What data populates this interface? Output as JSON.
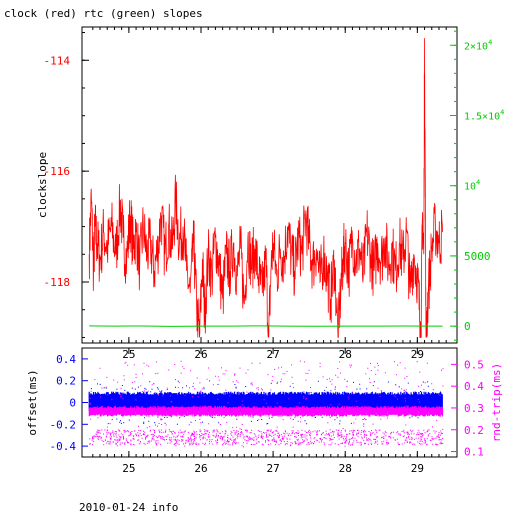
{
  "title": "clock (red) rtc (green) slopes",
  "footer": "2010-01-24 info",
  "colors": {
    "clock": "#ff0000",
    "rtc": "#00cc00",
    "offset": "#0000ff",
    "roundtrip": "#ff00ff",
    "axis": "#000000"
  },
  "chart_data": [
    {
      "type": "line",
      "title": "clock (red) rtc (green) slopes",
      "ylabel": "clockslope",
      "xlim": [
        24.35,
        29.55
      ],
      "ylim": [
        -119.1,
        -113.4
      ],
      "y2lim": [
        -1200,
        21300
      ],
      "x_ticks": [
        25,
        26,
        27,
        28,
        29
      ],
      "x_tick_labels": [
        "25",
        "26",
        "27",
        "28",
        "29"
      ],
      "y_ticks": [
        -114,
        -116,
        -118
      ],
      "y_tick_labels": [
        "-114",
        "-116",
        "-118"
      ],
      "y2_ticks": [
        0,
        5000,
        10000,
        15000,
        20000
      ],
      "y2_tick_labels_plain": [
        "0",
        "5000"
      ],
      "y2_tick_labels_sci": [
        {
          "mantissa": "10",
          "exponent": "4"
        },
        {
          "mantissa": "1.5×10",
          "exponent": "4"
        },
        {
          "mantissa": "2×10",
          "exponent": "4"
        }
      ],
      "series": [
        {
          "name": "clock",
          "axis": "left",
          "x": [
            24.45,
            24.48,
            24.51,
            24.53,
            24.56,
            24.6,
            24.65,
            24.7,
            24.76,
            24.82,
            24.88,
            24.92,
            24.97,
            25.02,
            25.06,
            25.1,
            25.15,
            25.2,
            25.25,
            25.3,
            25.35,
            25.4,
            25.45,
            25.5,
            25.55,
            25.6,
            25.65,
            25.7,
            25.75,
            25.8,
            25.85,
            25.9,
            25.94,
            25.98,
            26.02,
            26.05,
            26.1,
            26.15,
            26.2,
            26.25,
            26.3,
            26.35,
            26.4,
            26.45,
            26.5,
            26.55,
            26.6,
            26.65,
            26.7,
            26.75,
            26.8,
            26.85,
            26.9,
            26.94,
            26.97,
            27.0,
            27.05,
            27.1,
            27.15,
            27.2,
            27.25,
            27.3,
            27.35,
            27.4,
            27.45,
            27.5,
            27.55,
            27.6,
            27.65,
            27.7,
            27.75,
            27.8,
            27.85,
            27.9,
            27.94,
            27.97,
            28.0,
            28.05,
            28.1,
            28.15,
            28.2,
            28.25,
            28.3,
            28.35,
            28.4,
            28.45,
            28.5,
            28.55,
            28.6,
            28.65,
            28.7,
            28.75,
            28.8,
            28.85,
            28.9,
            28.95,
            29.0,
            29.03,
            29.05,
            29.07,
            29.09,
            29.1,
            29.12,
            29.15,
            29.2,
            29.25,
            29.3,
            29.35
          ],
          "y": [
            -117.5,
            -116.5,
            -117.8,
            -117.0,
            -117.3,
            -117.6,
            -117.1,
            -117.4,
            -117.0,
            -117.5,
            -116.6,
            -117.2,
            -117.6,
            -116.8,
            -117.4,
            -117.1,
            -117.7,
            -117.0,
            -117.5,
            -117.3,
            -117.8,
            -117.4,
            -116.8,
            -117.5,
            -117.0,
            -117.4,
            -116.5,
            -117.3,
            -117.0,
            -117.8,
            -118.2,
            -117.3,
            -118.5,
            -119.0,
            -117.6,
            -118.6,
            -117.5,
            -117.9,
            -117.2,
            -117.7,
            -118.3,
            -117.5,
            -117.8,
            -117.3,
            -117.9,
            -117.4,
            -118.4,
            -117.2,
            -117.7,
            -117.4,
            -117.9,
            -118.2,
            -117.6,
            -119.0,
            -117.8,
            -117.3,
            -117.9,
            -117.4,
            -117.6,
            -117.0,
            -117.5,
            -117.8,
            -117.2,
            -117.5,
            -116.8,
            -117.3,
            -117.7,
            -117.4,
            -118.0,
            -117.5,
            -117.9,
            -118.3,
            -117.6,
            -119.0,
            -118.1,
            -117.6,
            -117.3,
            -117.8,
            -117.2,
            -117.6,
            -117.4,
            -117.9,
            -117.1,
            -117.5,
            -117.8,
            -117.3,
            -117.6,
            -117.2,
            -117.7,
            -117.4,
            -117.8,
            -117.3,
            -117.6,
            -117.1,
            -118.2,
            -117.5,
            -117.9,
            -118.5,
            -119.0,
            -116.8,
            -117.5,
            -113.6,
            -119.0,
            -118.2,
            -117.4,
            -117.0,
            -117.3,
            -117.1
          ]
        },
        {
          "name": "rtc",
          "axis": "right",
          "x": [
            24.45,
            24.8,
            25.2,
            25.6,
            26.0,
            26.4,
            26.8,
            27.2,
            27.6,
            28.0,
            28.4,
            28.8,
            29.2,
            29.35
          ],
          "y": [
            20,
            0,
            10,
            -15,
            5,
            0,
            15,
            0,
            -10,
            5,
            0,
            10,
            0,
            5
          ]
        }
      ]
    },
    {
      "type": "scatter",
      "ylabel": "offset(ms)",
      "y2label": "rnd-trip(ms)",
      "xlim": [
        24.35,
        29.55
      ],
      "ylim": [
        -0.5,
        0.5
      ],
      "y2lim": [
        0.075,
        0.575
      ],
      "x_ticks": [
        25,
        26,
        27,
        28,
        29
      ],
      "x_tick_labels": [
        "25",
        "26",
        "27",
        "28",
        "29"
      ],
      "y_ticks": [
        0.4,
        0.2,
        0,
        -0.2,
        -0.4
      ],
      "y_tick_labels": [
        "0.4",
        "0.2",
        "0",
        "-0.2",
        "-0.4"
      ],
      "y2_ticks": [
        0.5,
        0.4,
        0.3,
        0.2,
        0.1
      ],
      "y2_tick_labels": [
        "0.5",
        "0.4",
        "0.3",
        "0.2",
        "0.1"
      ],
      "series": [
        {
          "name": "offset",
          "axis": "left",
          "x_range": [
            24.45,
            29.35
          ],
          "band": [
            -0.1,
            0.1
          ],
          "outlier_range": [
            -0.2,
            0.2
          ]
        },
        {
          "name": "rnd-trip",
          "axis": "right",
          "x_range": [
            24.45,
            29.35
          ],
          "band": [
            0.26,
            0.31
          ],
          "outlier_range": [
            0.12,
            0.52
          ],
          "lower_cluster": [
            0.13,
            0.2
          ]
        }
      ]
    }
  ]
}
